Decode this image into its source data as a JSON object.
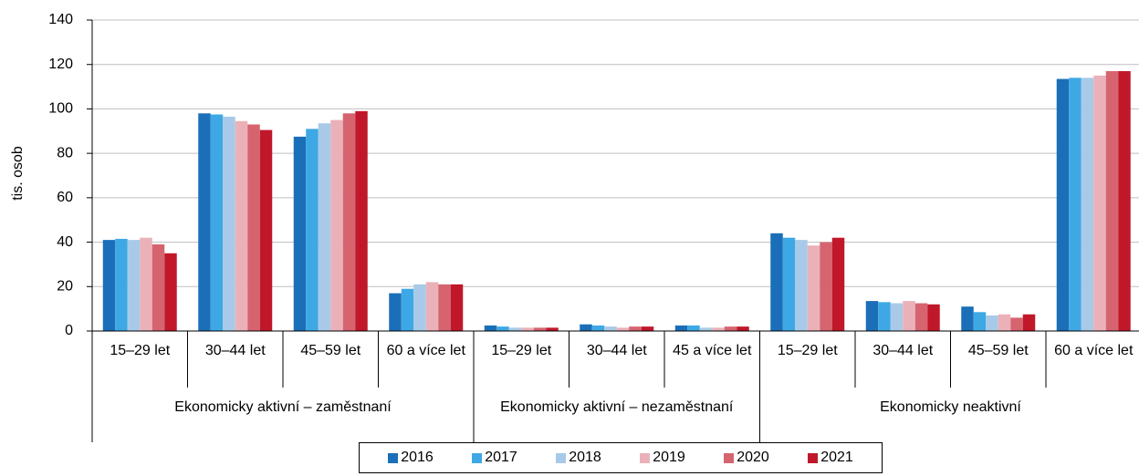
{
  "chart_data": {
    "type": "bar",
    "y_label": "tis. osob",
    "groups": [
      {
        "name": "Ekonomicky aktivní – zaměstnaní",
        "categories": [
          "15–29 let",
          "30–44 let",
          "45–59 let",
          "60 a více let"
        ]
      },
      {
        "name": "Ekonomicky aktivní – nezaměstnaní",
        "categories": [
          "15–29 let",
          "30–44 let",
          "45 a více let"
        ]
      },
      {
        "name": "Ekonomicky neaktivní",
        "categories": [
          "15–29 let",
          "30–44 let",
          "45–59 let",
          "60 a více let"
        ]
      }
    ],
    "series": [
      {
        "name": "2016",
        "color": "#1a6fb8",
        "values": [
          41,
          98,
          87.5,
          17,
          2.5,
          3,
          2.5,
          44,
          13.5,
          11,
          113.5
        ]
      },
      {
        "name": "2017",
        "color": "#3ea8e5",
        "values": [
          41.5,
          97.5,
          91,
          19,
          2,
          2.5,
          2.5,
          42,
          13,
          8.5,
          114
        ]
      },
      {
        "name": "2018",
        "color": "#a8cae8",
        "values": [
          41,
          96.5,
          93.5,
          21,
          1.5,
          2,
          1.5,
          41,
          12.5,
          7,
          114
        ]
      },
      {
        "name": "2019",
        "color": "#eab1b9",
        "values": [
          42,
          94.5,
          95,
          22,
          1.5,
          1.5,
          1.5,
          38.5,
          13.5,
          7.5,
          115
        ]
      },
      {
        "name": "2020",
        "color": "#d6646f",
        "values": [
          39,
          93,
          98,
          21,
          1.5,
          2,
          2,
          40,
          12.5,
          6,
          117
        ]
      },
      {
        "name": "2021",
        "color": "#c0182a",
        "values": [
          35,
          90.5,
          99,
          21,
          1.5,
          2,
          2,
          42,
          12,
          7.5,
          117
        ]
      }
    ],
    "ylim": [
      0,
      140
    ],
    "yticks": [
      0,
      20,
      40,
      60,
      80,
      100,
      120,
      140
    ],
    "grid": true
  }
}
